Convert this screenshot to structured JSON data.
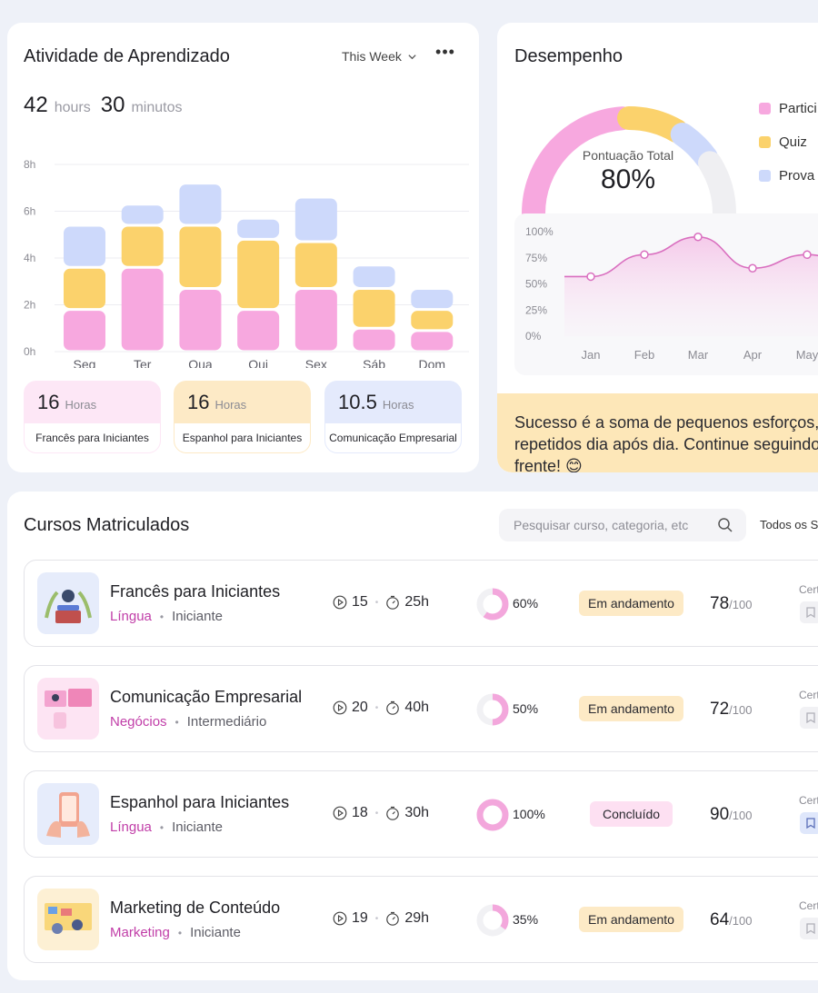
{
  "activity": {
    "title": "Atividade de Aprendizado",
    "period": "This Week",
    "total": {
      "hours": "42",
      "hours_unit": "hours",
      "minutes": "30",
      "minutes_unit": "minutos"
    },
    "chart_data": {
      "type": "bar",
      "stacked": true,
      "categories": [
        "Seg",
        "Ter",
        "Qua",
        "Qui",
        "Sex",
        "Sáb",
        "Dom"
      ],
      "y_ticks": [
        "0h",
        "2h",
        "4h",
        "6h",
        "8h"
      ],
      "ylim": [
        0,
        8
      ],
      "grid": true,
      "series": [
        {
          "color": "#f7a8df",
          "values": [
            1.8,
            3.6,
            2.7,
            1.8,
            2.7,
            1.0,
            0.9
          ]
        },
        {
          "color": "#fbd26c",
          "values": [
            1.8,
            1.8,
            2.7,
            3.0,
            2.0,
            1.7,
            0.9
          ]
        },
        {
          "color": "#cdd9fb",
          "values": [
            1.8,
            0.9,
            1.8,
            0.9,
            1.9,
            1.0,
            0.9
          ]
        }
      ]
    },
    "totals": [
      {
        "value": "16",
        "unit": "Horas",
        "label": "Francês para Iniciantes",
        "color": "#fde7f6"
      },
      {
        "value": "16",
        "unit": "Horas",
        "label": "Espanhol para Iniciantes",
        "color": "#fdeac6"
      },
      {
        "value": "10.5",
        "unit": "Horas",
        "label": "Comunicação Empresarial",
        "color": "#e4eafc"
      }
    ]
  },
  "performance": {
    "title": "Desempenho",
    "gauge": {
      "label": "Pontuação Total",
      "value": "80%",
      "fraction": 0.8
    },
    "legend": [
      {
        "label": "Partici",
        "color": "#f7a8df"
      },
      {
        "label": "Quiz",
        "color": "#fbd26c"
      },
      {
        "label": "Prova",
        "color": "#cdd9fb"
      }
    ],
    "chart_data": {
      "type": "line",
      "x": [
        "Jan",
        "Feb",
        "Mar",
        "Apr",
        "May"
      ],
      "y_ticks": [
        "0%",
        "25%",
        "50%",
        "75%",
        "100%"
      ],
      "ylim": [
        0,
        100
      ],
      "values": [
        57,
        78,
        95,
        65,
        78
      ],
      "color": "#d96fbf"
    },
    "quote": "Sucesso é a soma de pequenos esforços, repetidos dia após dia. Continue seguindo em frente! 😊"
  },
  "courses": {
    "title": "Cursos Matriculados",
    "search_placeholder": "Pesquisar curso, categoria, etc",
    "filter_label": "Todos os S",
    "cert_label": "Cert",
    "rows": [
      {
        "title": "Francês para Iniciantes",
        "category": "Língua",
        "level": "Iniciante",
        "lessons": "15",
        "duration": "25h",
        "progress": 0.6,
        "progress_label": "60%",
        "status": "Em andamento",
        "status_kind": "prog",
        "score": "78",
        "score_max": "/100",
        "thumb_bg": "#e6ecfb",
        "cert_active": false
      },
      {
        "title": "Comunicação Empresarial",
        "category": "Negócios",
        "level": "Intermediário",
        "lessons": "20",
        "duration": "40h",
        "progress": 0.5,
        "progress_label": "50%",
        "status": "Em andamento",
        "status_kind": "prog",
        "score": "72",
        "score_max": "/100",
        "thumb_bg": "#fde4f3",
        "cert_active": false
      },
      {
        "title": "Espanhol para Iniciantes",
        "category": "Língua",
        "level": "Iniciante",
        "lessons": "18",
        "duration": "30h",
        "progress": 1.0,
        "progress_label": "100%",
        "status": "Concluído",
        "status_kind": "done",
        "score": "90",
        "score_max": "/100",
        "thumb_bg": "#e6ecfb",
        "cert_active": true
      },
      {
        "title": "Marketing de Conteúdo",
        "category": "Marketing",
        "level": "Iniciante",
        "lessons": "19",
        "duration": "29h",
        "progress": 0.35,
        "progress_label": "35%",
        "status": "Em andamento",
        "status_kind": "prog",
        "score": "64",
        "score_max": "/100",
        "thumb_bg": "#fdf0d4",
        "cert_active": false
      }
    ]
  }
}
